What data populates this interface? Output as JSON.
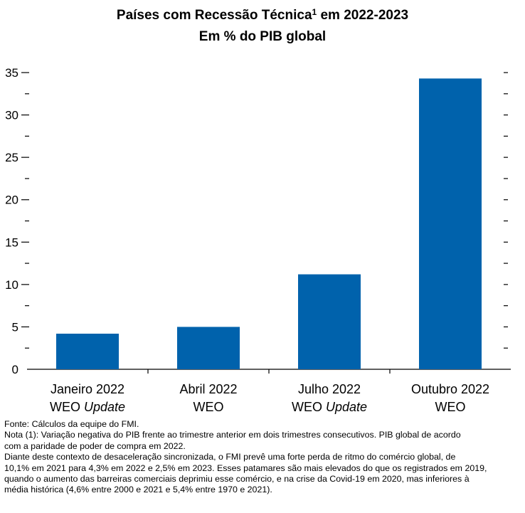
{
  "chart_data": {
    "type": "bar",
    "title": "Países com Recessão Técnica",
    "title_superscript": "1",
    "title_suffix": " em 2022-2023",
    "subtitle": "Em % do PIB global",
    "categories": [
      [
        "Janeiro 2022",
        "WEO Update"
      ],
      [
        "Abril 2022",
        "WEO"
      ],
      [
        "Julho 2022",
        "WEO Update"
      ],
      [
        "Outubro 2022",
        "WEO"
      ]
    ],
    "values": [
      4.2,
      5.0,
      11.2,
      34.3
    ],
    "ylim": [
      0,
      35
    ],
    "yticks": [
      "0",
      "5",
      "10",
      "15",
      "20",
      "25",
      "30",
      "35"
    ],
    "bar_color": "#0062ac",
    "grid": false
  },
  "footnotes": {
    "source": "Fonte: Cálculos da equipe do FMI.",
    "note_line1": "Nota (1): Variação negativa do PIB frente ao trimestre anterior em dois trimestres consecutivos. PIB global de acordo",
    "note_line2": "com a paridade de poder de compra em 2022.",
    "text_line1": "Diante deste contexto de desaceleração sincronizada, o FMI prevê uma forte perda de ritmo do comércio global, de",
    "text_line2": "10,1%  em 2021  para 4,3% em 2022  e 2,5% em 2023.  Esses patamares são mais elevados do que os registrados em 2019,",
    "text_line3": "quando o aumento das barreiras comerciais deprimiu esse comércio, e na crise da Covid-19 em 2020,  mas inferiores à",
    "text_line4": "média histórica (4,6% entre 2000  e 2021  e 5,4% entre 1970  e 2021)."
  }
}
